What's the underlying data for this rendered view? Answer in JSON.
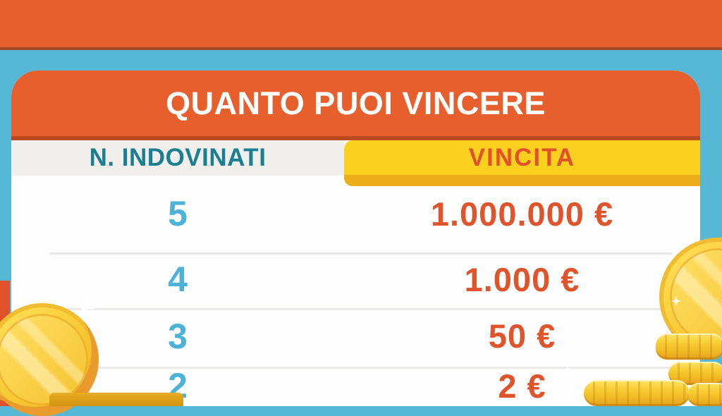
{
  "title": "QUANTO PUOI VINCERE",
  "table": {
    "columns": [
      {
        "label": "N. INDOVINATI"
      },
      {
        "label": "VINCITA"
      }
    ],
    "rows": [
      {
        "n": "5",
        "prize": "1.000.000 €"
      },
      {
        "n": "4",
        "prize": "1.000 €"
      },
      {
        "n": "3",
        "prize": "50 €"
      },
      {
        "n": "2",
        "prize": "2 €"
      }
    ]
  },
  "chart_data": {
    "type": "table",
    "title": "QUANTO PUOI VINCERE",
    "columns": [
      "N. INDOVINATI",
      "VINCITA"
    ],
    "categories": [
      "5",
      "4",
      "3",
      "2"
    ],
    "values_eur": [
      1000000,
      1000,
      50,
      2
    ],
    "value_labels": [
      "1.000.000 €",
      "1.000 €",
      "50 €",
      "2 €"
    ]
  },
  "colors": {
    "background_teal": "#57B8D5",
    "band_orange": "#E65F2C",
    "header_orange": "#E65F2C",
    "header_border": "#BC4A20",
    "column_left_bg": "#F0EFEC",
    "column_left_text": "#1B7E91",
    "column_right_bg": "#FCD01F",
    "column_right_strip": "#EDAD1A",
    "column_right_text": "#E2512B",
    "number_blue": "#4DB2D8",
    "prize_orange": "#E0542B",
    "coin_gold": "#F7C933"
  },
  "decorations": {
    "left": "large gold coin with sparkle and orange ribbon",
    "right": "large gold coin above stacks of gold coins with sparkles"
  }
}
